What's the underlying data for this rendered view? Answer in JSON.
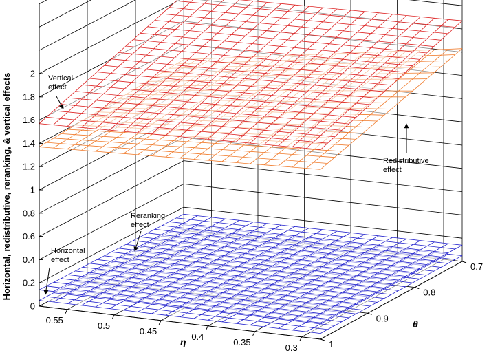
{
  "chart_data": {
    "type": "surface",
    "zlabel": "Horizontal, redistributive, reranking, & vertical effects",
    "eta_label": "η",
    "theta_label": "θ",
    "eta_ticks": [
      "0.55",
      "0.5",
      "0.45",
      "0.4",
      "0.35",
      "0.3"
    ],
    "theta_ticks": [
      "0.7",
      "0.8",
      "0.9",
      "1"
    ],
    "z_ticks": [
      "0",
      "0.2",
      "0.4",
      "0.6",
      "0.8",
      "1",
      "1.2",
      "1.4",
      "1.6",
      "1.8",
      "2"
    ],
    "eta_range": [
      0.28,
      0.58
    ],
    "theta_range": [
      0.7,
      1.0
    ],
    "zlim": [
      0,
      2
    ],
    "grid": true,
    "surfaces": [
      {
        "name": "Vertical effect",
        "color": "#dd2222",
        "z_corners": {
          "eta_max_theta_max": 1.57,
          "eta_max_theta_min": 2.03,
          "eta_min_theta_min": 2.07,
          "eta_min_theta_max": 1.63
        }
      },
      {
        "name": "Redistributive effect",
        "color": "#f07a2a",
        "z_corners": {
          "eta_max_theta_max": 1.37,
          "eta_max_theta_min": 1.47,
          "eta_min_theta_min": 1.83,
          "eta_min_theta_max": 1.46
        }
      },
      {
        "name": "Reranking effect",
        "color": "#2222cc",
        "z_corners": {
          "eta_max_theta_max": 0.14,
          "eta_max_theta_min": 0.14,
          "eta_min_theta_min": 0.14,
          "eta_min_theta_max": 0.14
        }
      },
      {
        "name": "Horizontal effect",
        "color": "#2222cc",
        "z_corners": {
          "eta_max_theta_max": 0.05,
          "eta_max_theta_min": 0.05,
          "eta_min_theta_min": 0.05,
          "eta_min_theta_max": 0.05
        }
      }
    ],
    "annotations": [
      {
        "lines": [
          "Vertical",
          "effect"
        ]
      },
      {
        "lines": [
          "Redistributive",
          "effect"
        ]
      },
      {
        "lines": [
          "Reranking",
          "effect"
        ]
      },
      {
        "lines": [
          "Horizontal",
          "effect"
        ]
      }
    ]
  }
}
